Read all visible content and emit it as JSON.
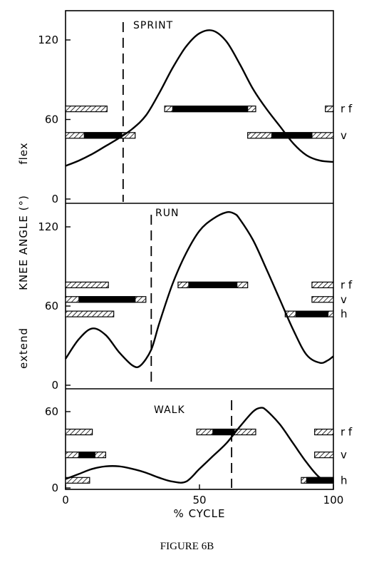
{
  "caption": "FIGURE 6B",
  "y_axis_title": "KNEE ANGLE (°)",
  "y_axis_flex": "flex",
  "y_axis_extend": "extend",
  "colors": {
    "ink": "#000000",
    "paper": "#ffffff"
  },
  "chart_data": [
    {
      "type": "line",
      "title": "SPRINT",
      "xlim": [
        0,
        100
      ],
      "ylim": [
        0,
        135
      ],
      "yticks": [
        0,
        60,
        120
      ],
      "toe_off": 21.5,
      "curve": {
        "x": [
          0,
          5,
          10,
          15,
          20,
          25,
          30,
          35,
          40,
          45,
          50,
          55,
          60,
          65,
          70,
          75,
          80,
          85,
          90,
          95,
          100
        ],
        "y": [
          25,
          29,
          34,
          40,
          46,
          53,
          63,
          80,
          99,
          115,
          125,
          127,
          119,
          102,
          83,
          68,
          55,
          42,
          33,
          29,
          28
        ]
      },
      "muscles": [
        {
          "label": "rf",
          "bars": [
            {
              "start": 0,
              "end": 15.5,
              "solid": []
            },
            {
              "start": 37,
              "end": 71,
              "solid": [
                [
                  40,
                  68
                ]
              ]
            },
            {
              "start": 97,
              "end": 100,
              "solid": []
            }
          ],
          "level": 68
        },
        {
          "label": "v",
          "bars": [
            {
              "start": 0,
              "end": 26,
              "solid": [
                [
                  7,
                  21
                ]
              ]
            },
            {
              "start": 68,
              "end": 100,
              "solid": [
                [
                  77,
                  92
                ]
              ]
            }
          ],
          "level": 48
        }
      ]
    },
    {
      "type": "line",
      "title": "RUN",
      "xlim": [
        0,
        100
      ],
      "ylim": [
        0,
        135
      ],
      "yticks": [
        0,
        60,
        120
      ],
      "toe_off": 32,
      "curve": {
        "x": [
          0,
          5,
          10,
          15,
          20,
          25,
          28,
          32,
          35,
          40,
          45,
          50,
          55,
          60,
          63,
          65,
          70,
          75,
          80,
          85,
          90,
          95,
          98,
          100
        ],
        "y": [
          20,
          35,
          43,
          38,
          25,
          15,
          15,
          27,
          47,
          77,
          100,
          117,
          126,
          131,
          130,
          126,
          110,
          88,
          65,
          42,
          23,
          17,
          19,
          22
        ]
      },
      "muscles": [
        {
          "label": "rf",
          "bars": [
            {
              "start": 0,
              "end": 16,
              "solid": []
            },
            {
              "start": 42,
              "end": 68,
              "solid": [
                [
                  46,
                  64
                ]
              ]
            },
            {
              "start": 92,
              "end": 100,
              "solid": []
            }
          ],
          "level": 76
        },
        {
          "label": "v",
          "bars": [
            {
              "start": 0,
              "end": 30,
              "solid": [
                [
                  5,
                  26
                ]
              ]
            },
            {
              "start": 92,
              "end": 100,
              "solid": []
            }
          ],
          "level": 65
        },
        {
          "label": "h",
          "bars": [
            {
              "start": 0,
              "end": 18,
              "solid": []
            },
            {
              "start": 82,
              "end": 100,
              "solid": [
                [
                  86,
                  98
                ]
              ]
            }
          ],
          "level": 54
        }
      ]
    },
    {
      "type": "line",
      "title": "WALK",
      "xlim": [
        0,
        100
      ],
      "ylim": [
        0,
        68
      ],
      "yticks": [
        0,
        60
      ],
      "toe_off": 62,
      "curve": {
        "x": [
          0,
          5,
          10,
          15,
          20,
          25,
          30,
          35,
          40,
          45,
          50,
          55,
          60,
          65,
          70,
          73,
          75,
          80,
          85,
          90,
          95,
          100
        ],
        "y": [
          7,
          11,
          15,
          17,
          17,
          15,
          12,
          8,
          5,
          5,
          15,
          25,
          35,
          48,
          60,
          63,
          61,
          50,
          35,
          20,
          8,
          4
        ]
      },
      "muscles": [
        {
          "label": "rf",
          "bars": [
            {
              "start": 0,
              "end": 10,
              "solid": []
            },
            {
              "start": 49,
              "end": 71,
              "solid": [
                [
                  55,
                  63
                ]
              ]
            },
            {
              "start": 93,
              "end": 100,
              "solid": []
            }
          ],
          "level": 44
        },
        {
          "label": "v",
          "bars": [
            {
              "start": 0,
              "end": 15,
              "solid": [
                [
                  5,
                  11
                ]
              ]
            },
            {
              "start": 93,
              "end": 100,
              "solid": []
            }
          ],
          "level": 26
        },
        {
          "label": "h",
          "bars": [
            {
              "start": 0,
              "end": 9,
              "solid": []
            },
            {
              "start": 88,
              "end": 100,
              "solid": [
                [
                  90,
                  100
                ]
              ]
            }
          ],
          "level": 6
        }
      ]
    }
  ],
  "x_axis": {
    "title": "% CYCLE",
    "ticks": [
      0,
      50,
      100
    ]
  }
}
